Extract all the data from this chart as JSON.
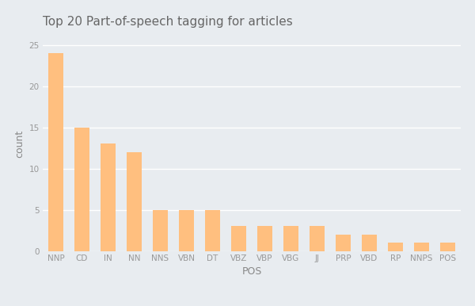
{
  "categories": [
    "NNP",
    "CD",
    "IN",
    "NN",
    "NNS",
    "VBN",
    "DT",
    "VBZ",
    "VBP",
    "VBG",
    "JJ",
    "PRP",
    "VBD",
    "RP",
    "NNPS",
    "POS"
  ],
  "values": [
    24,
    15,
    13,
    12,
    5,
    5,
    5,
    3,
    3,
    3,
    3,
    2,
    2,
    1,
    1,
    1
  ],
  "bar_color": "#FFBF7F",
  "title": "Top 20 Part-of-speech tagging for articles",
  "xlabel": "POS",
  "ylabel": "count",
  "ylim": [
    0,
    26
  ],
  "yticks": [
    0,
    5,
    10,
    15,
    20,
    25
  ],
  "background_color": "#E8ECF0",
  "grid_color": "#FFFFFF",
  "title_fontsize": 11,
  "label_fontsize": 9,
  "tick_fontsize": 7.5,
  "title_color": "#666666",
  "label_color": "#888888",
  "tick_color": "#999999"
}
